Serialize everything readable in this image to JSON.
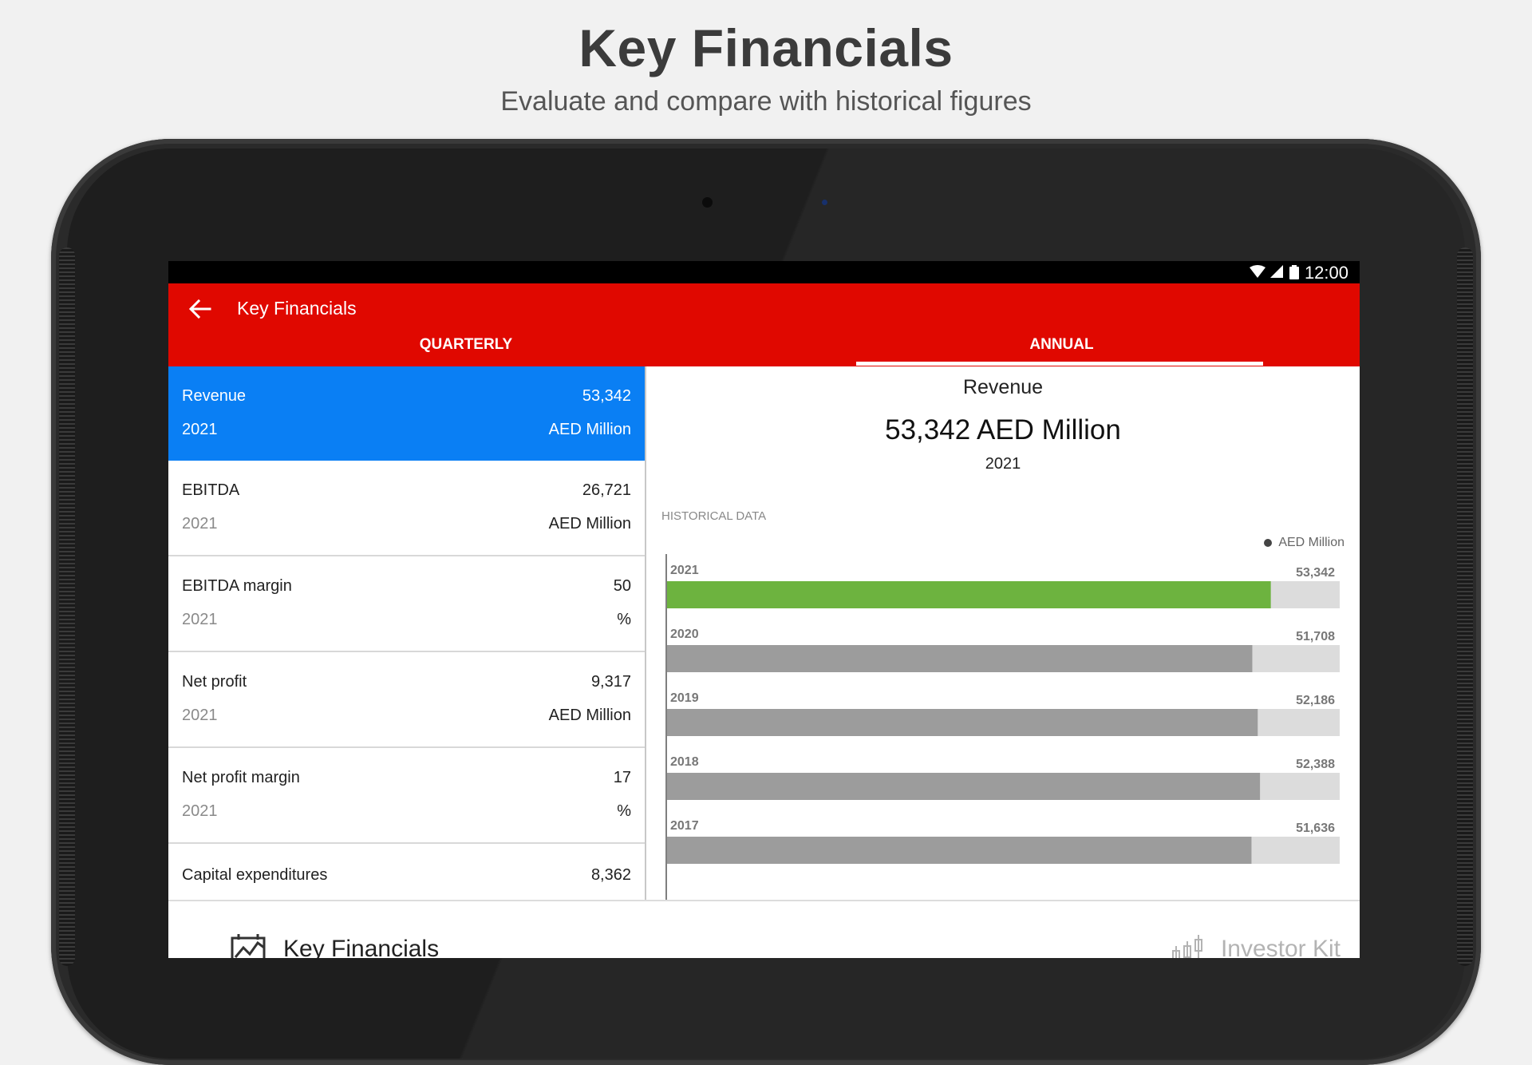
{
  "promo": {
    "title": "Key Financials",
    "subtitle": "Evaluate and compare with historical figures"
  },
  "statusbar": {
    "time": "12:00",
    "icons": [
      "wifi-icon",
      "signal-icon",
      "battery-icon"
    ]
  },
  "appbar": {
    "title": "Key Financials",
    "back_icon": "arrow-left-icon",
    "color": "#e00800"
  },
  "tabs": [
    {
      "label": "QUARTERLY",
      "selected": false
    },
    {
      "label": "ANNUAL",
      "selected": true
    }
  ],
  "list": {
    "items": [
      {
        "label": "Revenue",
        "value": "53,342",
        "year": "2021",
        "unit": "AED Million",
        "selected": true
      },
      {
        "label": "EBITDA",
        "value": "26,721",
        "year": "2021",
        "unit": "AED Million",
        "selected": false
      },
      {
        "label": "EBITDA margin",
        "value": "50",
        "year": "2021",
        "unit": "%",
        "selected": false
      },
      {
        "label": "Net profit",
        "value": "9,317",
        "year": "2021",
        "unit": "AED Million",
        "selected": false
      },
      {
        "label": "Net profit margin",
        "value": "17",
        "year": "2021",
        "unit": "%",
        "selected": false
      },
      {
        "label": "Capital expenditures",
        "value": "8,362",
        "year": "",
        "unit": "",
        "selected": false
      }
    ],
    "selected_color": "#0a7ff4"
  },
  "detail": {
    "title": "Revenue",
    "value": "53,342 AED Million",
    "year": "2021",
    "historical_label": "HISTORICAL DATA",
    "legend": "AED Million"
  },
  "chart_data": {
    "type": "bar",
    "orientation": "horizontal",
    "categories": [
      "2021",
      "2020",
      "2019",
      "2018",
      "2017"
    ],
    "values": [
      53342,
      51708,
      52186,
      52388,
      51636
    ],
    "value_labels": [
      "53,342",
      "51,708",
      "52,186",
      "52,388",
      "51,636"
    ],
    "series": [
      {
        "name": "AED Million",
        "values": [
          53342,
          51708,
          52186,
          52388,
          51636
        ]
      }
    ],
    "xlim": [
      0,
      59500
    ],
    "highlight_color": "#6db33f",
    "bar_color": "#9c9c9c",
    "track_color": "#dcdcdc",
    "legend_position": "top-right",
    "grid": false
  },
  "bottomnav": {
    "left_label": "Key Financials",
    "left_icon": "chart-icon",
    "right_label": "Investor Kit",
    "right_icon": "candlestick-icon"
  }
}
